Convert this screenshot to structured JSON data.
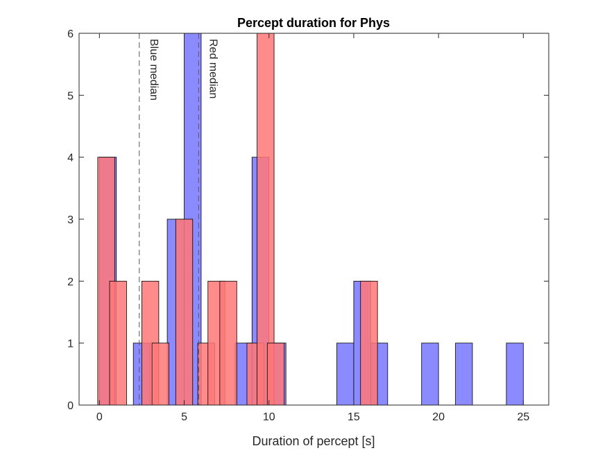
{
  "chart_data": {
    "type": "bar",
    "title": "Percept duration for Phys",
    "xlabel": "Duration of percept [s]",
    "ylabel": "",
    "xlim": [
      -1.2,
      26.5
    ],
    "ylim": [
      0,
      6
    ],
    "xticks": [
      0,
      5,
      10,
      15,
      20,
      25
    ],
    "yticks": [
      0,
      1,
      2,
      3,
      4,
      5,
      6
    ],
    "grid": false,
    "colors": {
      "blue": "#7777ff",
      "red": "#ff7777",
      "overlap": "#7d3fbf"
    },
    "bin_width": 1.0,
    "series": [
      {
        "color": "blue",
        "bins": [
          {
            "x": 0.5,
            "count": 4
          },
          {
            "x": 2.5,
            "count": 1
          },
          {
            "x": 4.5,
            "count": 3
          },
          {
            "x": 5.5,
            "count": 6
          },
          {
            "x": 8.5,
            "count": 1
          },
          {
            "x": 9.5,
            "count": 4
          },
          {
            "x": 10.5,
            "count": 1
          },
          {
            "x": 14.5,
            "count": 1
          },
          {
            "x": 15.5,
            "count": 2
          },
          {
            "x": 16.5,
            "count": 1
          },
          {
            "x": 19.5,
            "count": 1
          },
          {
            "x": 21.5,
            "count": 1
          },
          {
            "x": 24.5,
            "count": 1
          }
        ]
      },
      {
        "color": "red",
        "bins": [
          {
            "x": 0.4,
            "count": 4
          },
          {
            "x": 1.1,
            "count": 2
          },
          {
            "x": 3.0,
            "count": 2
          },
          {
            "x": 3.6,
            "count": 1
          },
          {
            "x": 5.0,
            "count": 3
          },
          {
            "x": 6.3,
            "count": 1
          },
          {
            "x": 6.9,
            "count": 2
          },
          {
            "x": 7.6,
            "count": 2
          },
          {
            "x": 9.2,
            "count": 1
          },
          {
            "x": 9.8,
            "count": 6
          },
          {
            "x": 10.4,
            "count": 1
          },
          {
            "x": 15.9,
            "count": 2
          }
        ]
      }
    ],
    "annotations": [
      {
        "label": "Blue median",
        "x": 2.35
      },
      {
        "label": "Red median",
        "x": 5.85
      }
    ]
  }
}
